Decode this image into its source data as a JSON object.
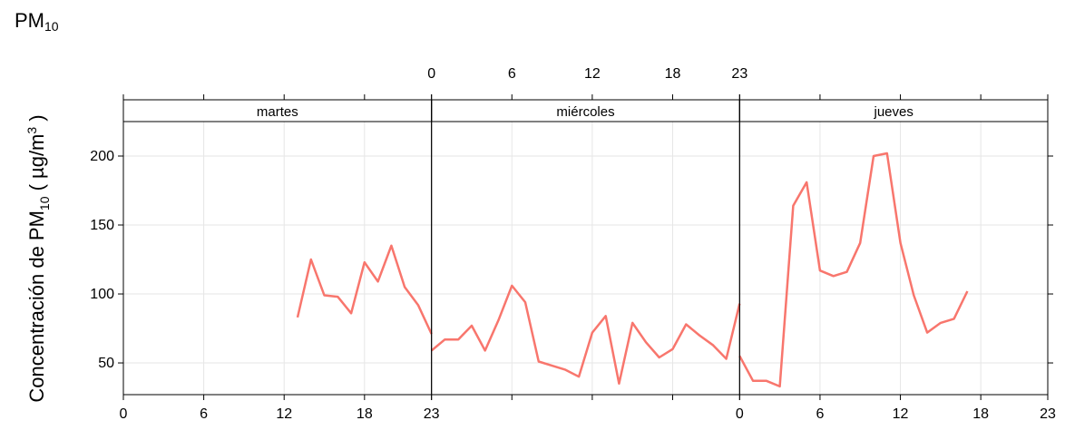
{
  "page": {
    "title_main": "PM",
    "title_sub": "10"
  },
  "chart_data": {
    "type": "line",
    "ylabel_parts": [
      "Concentración de PM",
      "10",
      " ( µg/m",
      "3",
      " )"
    ],
    "ylim": [
      27,
      225
    ],
    "y_ticks": [
      50,
      100,
      150,
      200
    ],
    "x_ticks": [
      0,
      6,
      12,
      18,
      23
    ],
    "x_range": [
      0,
      23
    ],
    "grid": true,
    "line_color": "#F8766D",
    "panels": [
      {
        "name": "martes",
        "x": [
          13,
          14,
          15,
          16,
          17,
          18,
          19,
          20,
          21,
          22,
          23
        ],
        "y": [
          83,
          125,
          99,
          98,
          86,
          123,
          109,
          135,
          105,
          92,
          71
        ]
      },
      {
        "name": "miércoles",
        "x": [
          0,
          1,
          2,
          3,
          4,
          5,
          6,
          7,
          8,
          9,
          10,
          11,
          12,
          13,
          14,
          15,
          16,
          17,
          18,
          19,
          20,
          21,
          22,
          23
        ],
        "y": [
          59,
          67,
          67,
          77,
          59,
          81,
          106,
          94,
          51,
          48,
          45,
          40,
          72,
          84,
          35,
          79,
          65,
          54,
          60,
          78,
          70,
          63,
          53,
          93
        ]
      },
      {
        "name": "jueves",
        "x": [
          0,
          1,
          2,
          3,
          4,
          5,
          6,
          7,
          8,
          9,
          10,
          11,
          12,
          13,
          14,
          15,
          16,
          17
        ],
        "y": [
          55,
          37,
          37,
          33,
          164,
          181,
          117,
          113,
          116,
          137,
          200,
          202,
          137,
          99,
          72,
          79,
          82,
          102
        ]
      }
    ]
  }
}
